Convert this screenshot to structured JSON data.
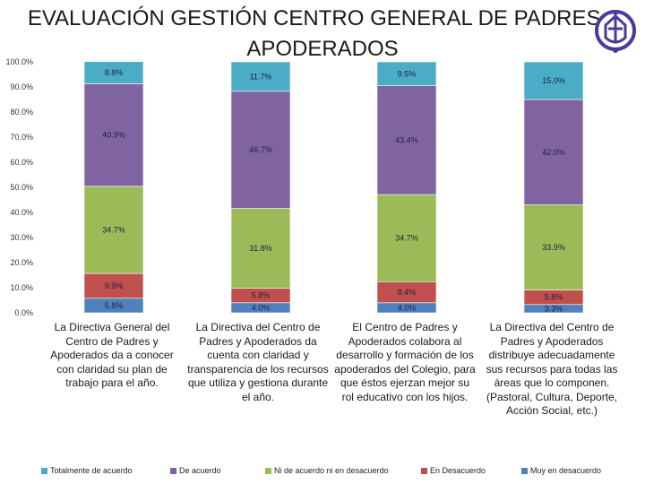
{
  "title": "EVALUACIÓN GESTIÓN CENTRO GENERAL DE PADRES y APODERADOS",
  "logo_icon": "school-crest-icon",
  "chart_data": {
    "type": "bar",
    "stacked": true,
    "percent": true,
    "ylim": [
      0,
      100
    ],
    "yticks": [
      "0.0%",
      "10.0%",
      "20.0%",
      "30.0%",
      "40.0%",
      "50.0%",
      "60.0%",
      "70.0%",
      "80.0%",
      "90.0%",
      "100.0%"
    ],
    "grid": false,
    "legend_position": "bottom",
    "categories": [
      "La Directiva General del Centro de Padres y Apoderados da a conocer con claridad su plan de trabajo para el año.",
      "La Directiva del Centro de Padres y Apoderados da cuenta con claridad y transparencia de los recursos que utiliza y gestiona durante el año.",
      "El Centro de Padres y Apoderados colabora al desarrollo y formación de los apoderados del Colegio, para que éstos ejerzan mejor su rol educativo con los hijos.",
      "La Directiva del Centro de Padres y Apoderados distribuye adecuadamente sus recursos para todas las áreas que lo componen. (Pastoral, Cultura, Deporte, Acción Social, etc.)"
    ],
    "series": [
      {
        "name": "Muy en desacuerdo",
        "color": "#4f81bd",
        "values": [
          5.8,
          4.0,
          4.0,
          3.3
        ],
        "labels": [
          "5.8%",
          "4.0%",
          "4.0%",
          "3.3%"
        ]
      },
      {
        "name": "En Desacuerdo",
        "color": "#c0504d",
        "values": [
          9.9,
          5.8,
          8.4,
          5.8
        ],
        "labels": [
          "9.9%",
          "5.8%",
          "8.4%",
          "5.8%"
        ]
      },
      {
        "name": "Ni de acuerdo ni en desacuerdo",
        "color": "#9bbb59",
        "values": [
          34.7,
          31.8,
          34.7,
          33.9
        ],
        "labels": [
          "34.7%",
          "31.8%",
          "34.7%",
          "33.9%"
        ]
      },
      {
        "name": "De acuerdo",
        "color": "#8064a2",
        "values": [
          40.9,
          46.7,
          43.4,
          42.0
        ],
        "labels": [
          "40.9%",
          "46.7%",
          "43.4%",
          "42.0%"
        ]
      },
      {
        "name": "Totalmente de acuerdo",
        "color": "#4bacc6",
        "values": [
          8.8,
          11.7,
          9.5,
          15.0
        ],
        "labels": [
          "8.8%",
          "11.7%",
          "9.5%",
          "15.0%"
        ]
      }
    ],
    "legend_order": [
      "Totalmente de acuerdo",
      "De acuerdo",
      "Ni de acuerdo ni en desacuerdo",
      "En Desacuerdo",
      "Muy en desacuerdo"
    ]
  }
}
